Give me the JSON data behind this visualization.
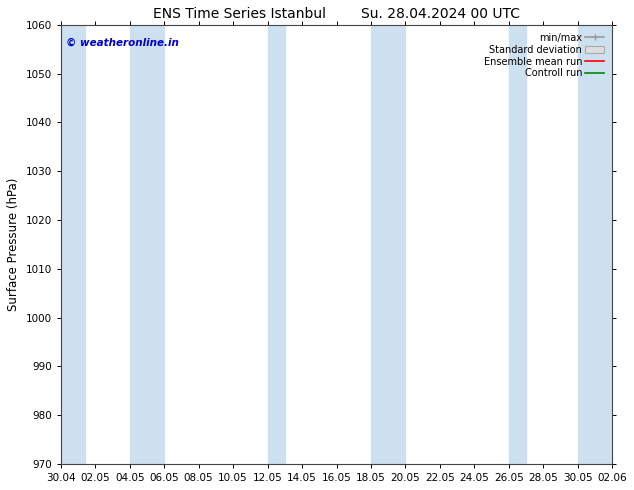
{
  "title1": "ENS Time Series Istanbul",
  "title2": "Su. 28.04.2024 00 UTC",
  "ylabel": "Surface Pressure (hPa)",
  "ylim": [
    970,
    1060
  ],
  "yticks": [
    970,
    980,
    990,
    1000,
    1010,
    1020,
    1030,
    1040,
    1050,
    1060
  ],
  "xtick_labels": [
    "30.04",
    "02.05",
    "04.05",
    "06.05",
    "08.05",
    "10.05",
    "12.05",
    "14.05",
    "16.05",
    "18.05",
    "20.05",
    "22.05",
    "24.05",
    "26.05",
    "28.05",
    "30.05",
    "02.06"
  ],
  "n_ticks": 17,
  "band_color": "#cce0f0",
  "bg_color": "#ffffff",
  "legend_minmax_color": "#999999",
  "legend_std_color": "#cccccc",
  "legend_mean_color": "#ff0000",
  "legend_control_color": "#008800",
  "watermark_text": "© weatheronline.in",
  "watermark_color": "#0000cc",
  "title_fontsize": 10,
  "label_fontsize": 8.5,
  "tick_fontsize": 7.5
}
